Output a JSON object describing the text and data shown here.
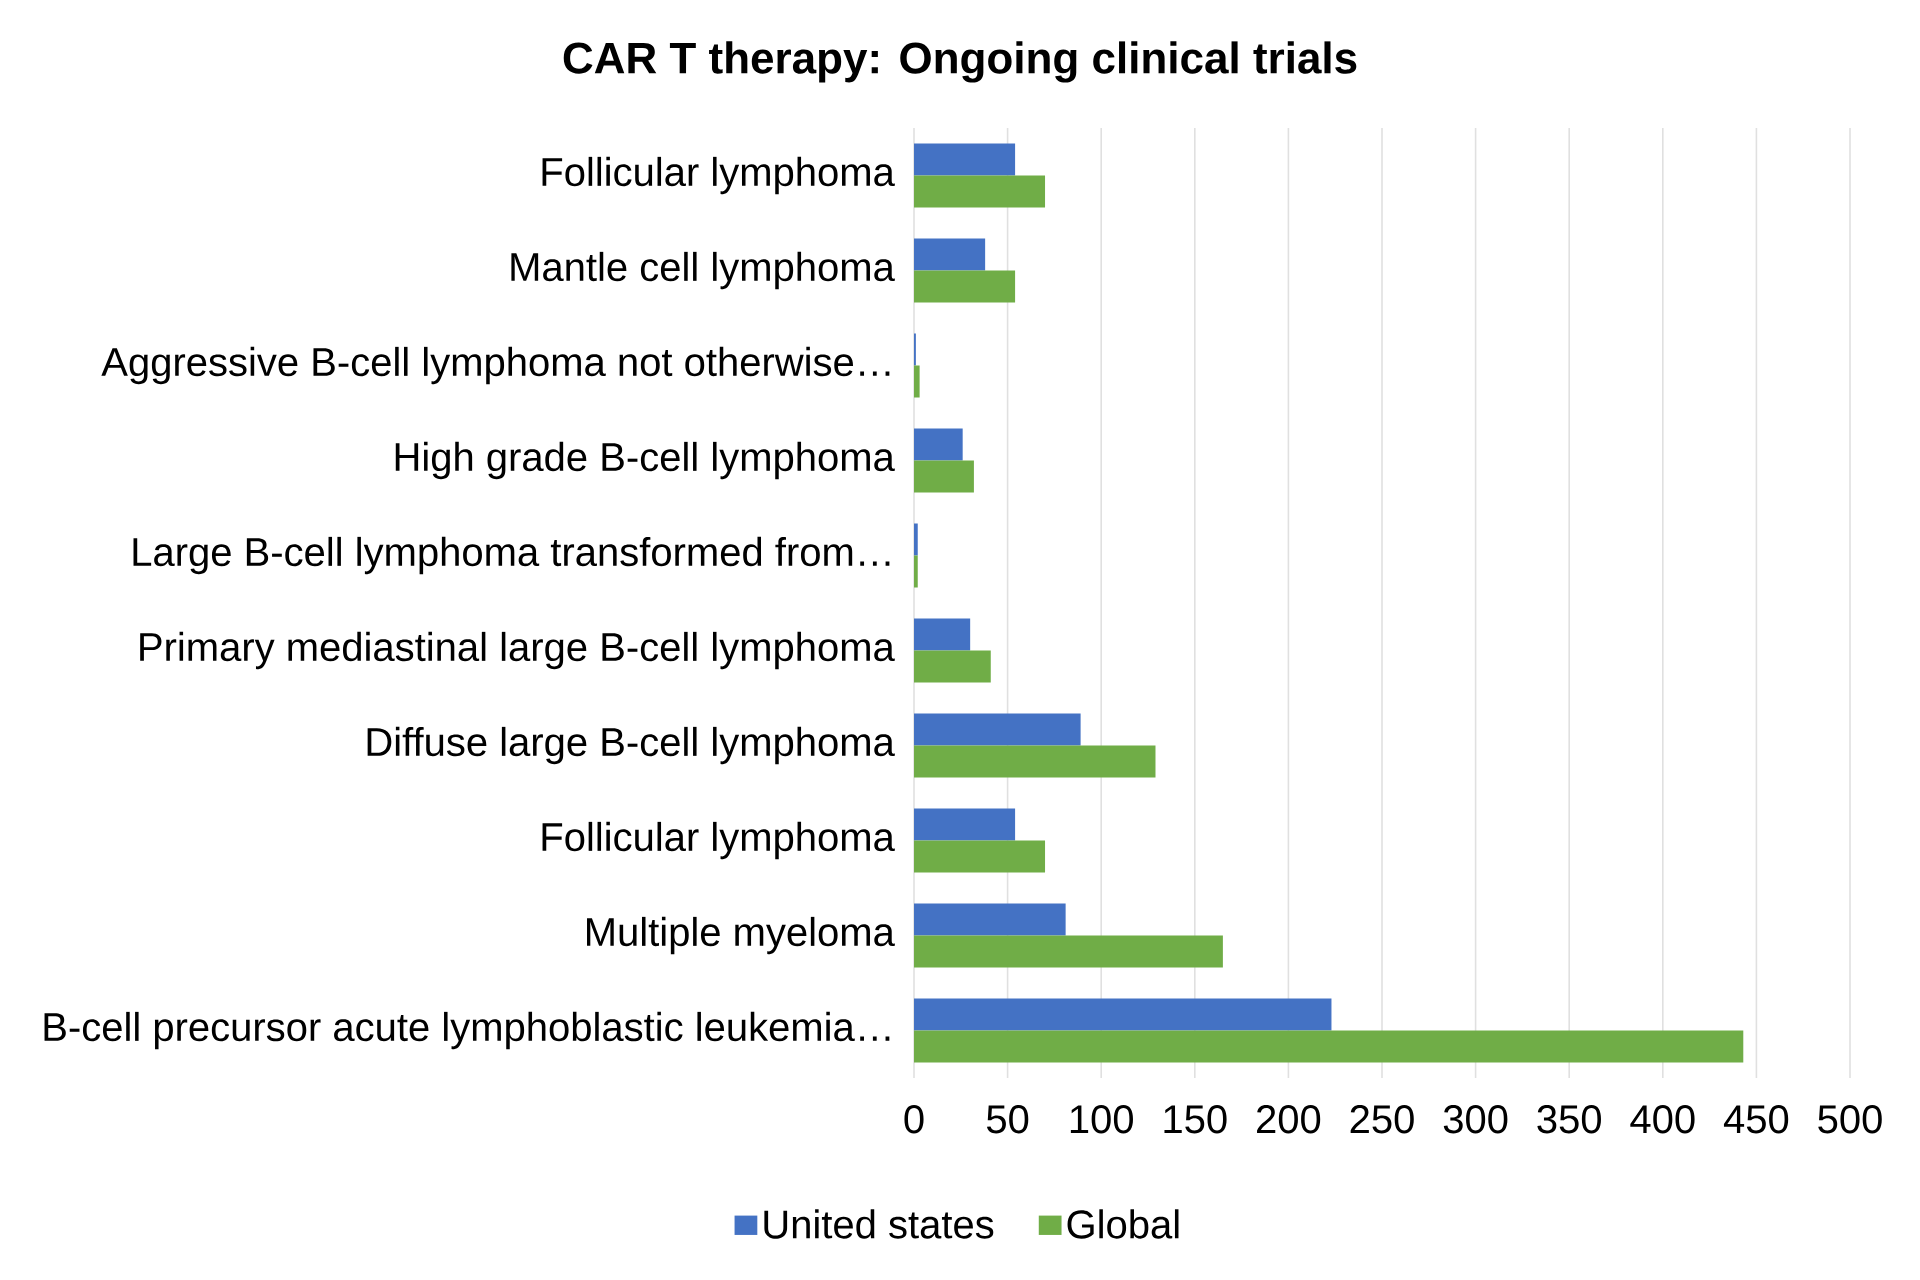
{
  "chart_data": {
    "type": "bar",
    "orientation": "horizontal",
    "title": "CAR T therapy: Ongoing clinical trials",
    "categories": [
      "Follicular lymphoma",
      "Mantle cell lymphoma",
      "Aggressive B-cell lymphoma not otherwise…",
      "High grade B-cell lymphoma",
      "Large B-cell lymphoma transformed from…",
      "Primary mediastinal large B-cell lymphoma",
      "Diffuse large B-cell lymphoma",
      "Follicular lymphoma",
      "Multiple myeloma",
      "B-cell precursor acute lymphoblastic leukemia…"
    ],
    "series": [
      {
        "name": "United states",
        "color": "#4472c4",
        "values": [
          54,
          38,
          1,
          26,
          2,
          30,
          89,
          54,
          81,
          223
        ]
      },
      {
        "name": "Global",
        "color": "#70ad47",
        "values": [
          70,
          54,
          3,
          32,
          2,
          41,
          129,
          70,
          165,
          443
        ]
      }
    ],
    "xlim": [
      0,
      500
    ],
    "xticks": [
      0,
      50,
      100,
      150,
      200,
      250,
      300,
      350,
      400,
      450,
      500
    ],
    "grid": "x",
    "legend": "bottom"
  }
}
